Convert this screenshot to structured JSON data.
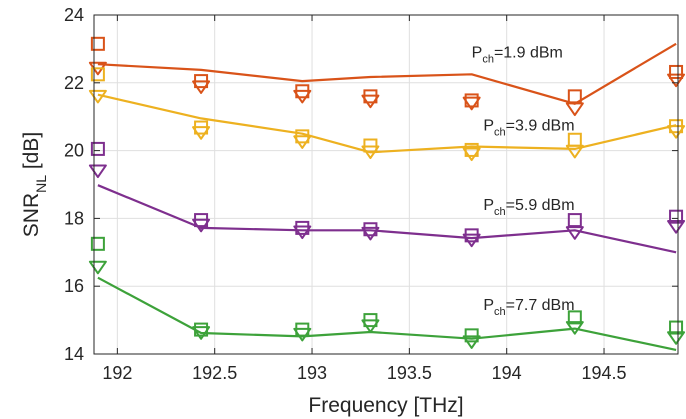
{
  "chart_data": {
    "type": "line",
    "xlabel": "Frequency [THz]",
    "ylabel": {
      "main": "SNR",
      "sub": "NL",
      "unit": " [dB]"
    },
    "xlim": [
      191.88,
      194.88
    ],
    "ylim": [
      14,
      24
    ],
    "x_ticks": [
      192,
      192.5,
      193,
      193.5,
      194,
      194.5
    ],
    "x_tick_labels": [
      "192",
      "192.5",
      "193",
      "193.5",
      "194",
      "194.5"
    ],
    "y_ticks": [
      14,
      16,
      18,
      20,
      22,
      24
    ],
    "y_tick_labels": [
      "14",
      "16",
      "18",
      "20",
      "22",
      "24"
    ],
    "grid": true,
    "series": [
      {
        "color": "#D95319",
        "annotation": {
          "prefix": "P",
          "sub": "ch",
          "suffix": "=1.9 dBm",
          "x": 193.82,
          "y": 22.75
        },
        "line": {
          "x": [
            191.9,
            192.43,
            192.95,
            193.3,
            193.82,
            194.35,
            194.87
          ],
          "y": [
            22.55,
            22.38,
            22.05,
            22.17,
            22.25,
            21.38,
            23.15
          ]
        },
        "squares": {
          "x": [
            191.9,
            192.43,
            192.95,
            193.3,
            193.82,
            194.35,
            194.87
          ],
          "y": [
            23.15,
            22.05,
            21.75,
            21.6,
            21.48,
            21.6,
            22.32
          ]
        },
        "triangles": {
          "x": [
            191.9,
            192.43,
            192.95,
            193.3,
            193.82,
            194.35,
            194.87
          ],
          "y": [
            22.45,
            21.9,
            21.62,
            21.48,
            21.42,
            21.25,
            22.1
          ]
        }
      },
      {
        "color": "#EDB120",
        "annotation": {
          "prefix": "P",
          "sub": "ch",
          "suffix": "=3.9 dBm",
          "x": 193.88,
          "y": 20.6
        },
        "line": {
          "x": [
            191.9,
            192.43,
            192.95,
            193.3,
            193.82,
            194.35,
            194.87
          ],
          "y": [
            21.65,
            20.95,
            20.5,
            19.95,
            20.12,
            20.05,
            20.75
          ]
        },
        "squares": {
          "x": [
            191.9,
            192.43,
            192.95,
            193.3,
            193.82,
            194.35,
            194.87
          ],
          "y": [
            22.25,
            20.68,
            20.42,
            20.15,
            20.02,
            20.32,
            20.72
          ]
        },
        "triangles": {
          "x": [
            191.9,
            192.43,
            192.95,
            193.3,
            193.82,
            194.35,
            194.87
          ],
          "y": [
            21.62,
            20.55,
            20.28,
            19.98,
            19.92,
            20.0,
            20.58
          ]
        }
      },
      {
        "color": "#7E2F8E",
        "annotation": {
          "prefix": "P",
          "sub": "ch",
          "suffix": "=5.9 dBm",
          "x": 193.88,
          "y": 18.25
        },
        "line": {
          "x": [
            191.9,
            192.43,
            192.95,
            193.3,
            193.82,
            194.35,
            194.87
          ],
          "y": [
            18.98,
            17.72,
            17.65,
            17.65,
            17.42,
            17.65,
            17.0
          ]
        },
        "squares": {
          "x": [
            191.9,
            192.43,
            192.95,
            193.3,
            193.82,
            194.35,
            194.87
          ],
          "y": [
            20.05,
            17.95,
            17.72,
            17.68,
            17.5,
            17.95,
            18.05
          ]
        },
        "triangles": {
          "x": [
            191.9,
            192.43,
            192.95,
            193.3,
            193.82,
            194.35,
            194.87
          ],
          "y": [
            19.42,
            17.82,
            17.62,
            17.58,
            17.38,
            17.6,
            17.78
          ]
        }
      },
      {
        "color": "#3DA23A",
        "annotation": {
          "prefix": "P",
          "sub": "ch",
          "suffix": "=7.7 dBm",
          "x": 193.88,
          "y": 15.3
        },
        "line": {
          "x": [
            191.9,
            192.43,
            192.95,
            193.3,
            193.82,
            194.35,
            194.87
          ],
          "y": [
            16.25,
            14.62,
            14.52,
            14.65,
            14.45,
            14.75,
            14.12
          ]
        },
        "squares": {
          "x": [
            191.9,
            192.43,
            192.95,
            193.3,
            193.82,
            194.35,
            194.87
          ],
          "y": [
            17.25,
            14.72,
            14.72,
            15.0,
            14.55,
            15.08,
            14.78
          ]
        },
        "triangles": {
          "x": [
            191.9,
            192.43,
            192.95,
            193.3,
            193.82,
            194.35,
            194.87
          ],
          "y": [
            16.58,
            14.65,
            14.6,
            14.85,
            14.38,
            14.8,
            14.5
          ]
        }
      }
    ]
  }
}
